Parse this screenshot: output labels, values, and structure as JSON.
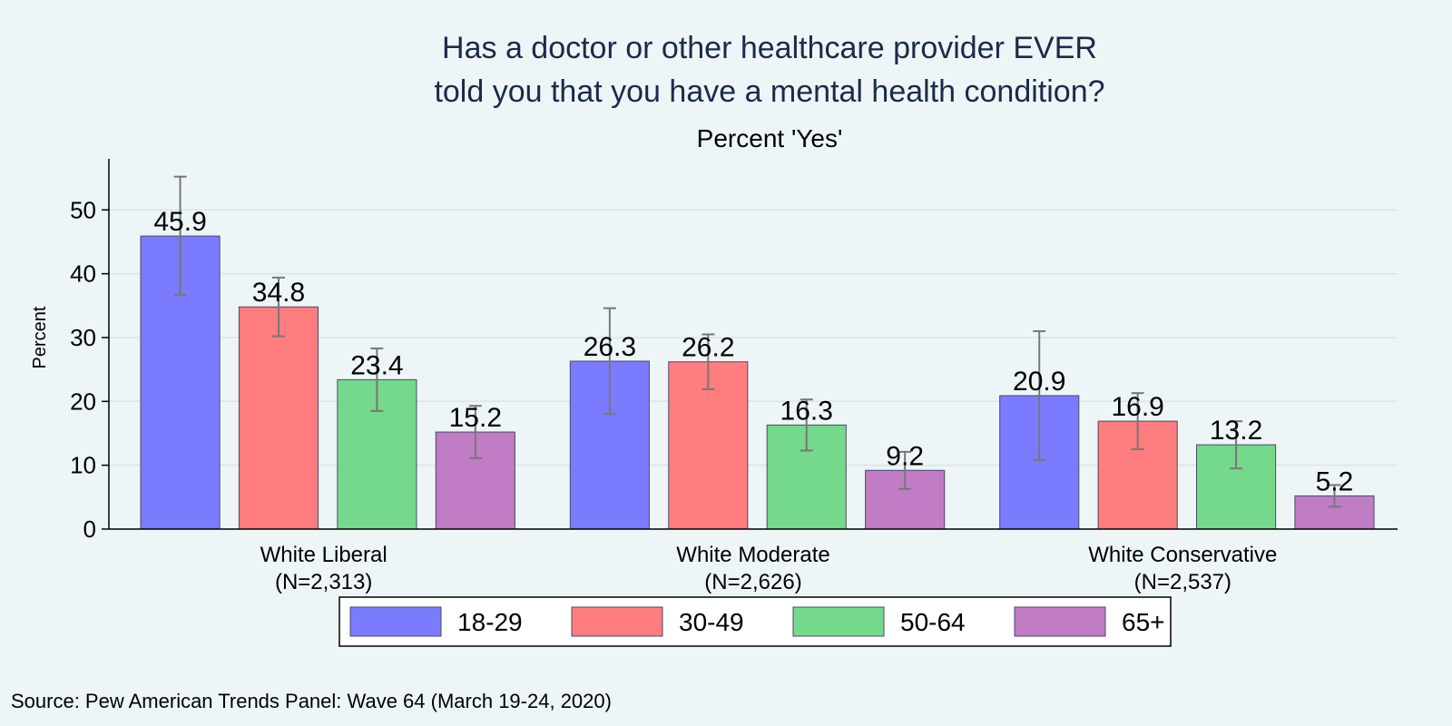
{
  "chart_data": {
    "type": "bar",
    "title_lines": [
      "Has a doctor or other healthcare provider EVER",
      "told you that you have a mental health condition?"
    ],
    "subtitle": "Percent 'Yes'",
    "ylabel": "Percent",
    "ylim": [
      0,
      58
    ],
    "yticks": [
      0,
      10,
      20,
      30,
      40,
      50
    ],
    "grid": true,
    "categories": [
      {
        "name": "White Liberal",
        "n": "(N=2,313)"
      },
      {
        "name": "White Moderate",
        "n": "(N=2,626)"
      },
      {
        "name": "White Conservative",
        "n": "(N=2,537)"
      }
    ],
    "series": [
      {
        "name": "18-29",
        "color": "#7b7bff",
        "values": [
          45.9,
          26.3,
          20.9
        ],
        "ci_low": [
          36.7,
          18.0,
          10.8
        ],
        "ci_high": [
          55.2,
          34.6,
          31.0
        ]
      },
      {
        "name": "30-49",
        "color": "#ff7c7f",
        "values": [
          34.8,
          26.2,
          16.9
        ],
        "ci_low": [
          30.2,
          21.9,
          12.5
        ],
        "ci_high": [
          39.4,
          30.5,
          21.3
        ]
      },
      {
        "name": "50-64",
        "color": "#74d98a",
        "values": [
          23.4,
          16.3,
          13.2
        ],
        "ci_low": [
          18.5,
          12.3,
          9.5
        ],
        "ci_high": [
          28.3,
          20.3,
          16.9
        ]
      },
      {
        "name": "65+",
        "color": "#c07cc4",
        "values": [
          15.2,
          9.2,
          5.2
        ],
        "ci_low": [
          11.1,
          6.3,
          3.5
        ],
        "ci_high": [
          19.3,
          12.1,
          6.9
        ]
      }
    ],
    "legend_position": "bottom",
    "source": "Source: Pew American Trends Panel: Wave 64 (March 19-24, 2020)"
  }
}
